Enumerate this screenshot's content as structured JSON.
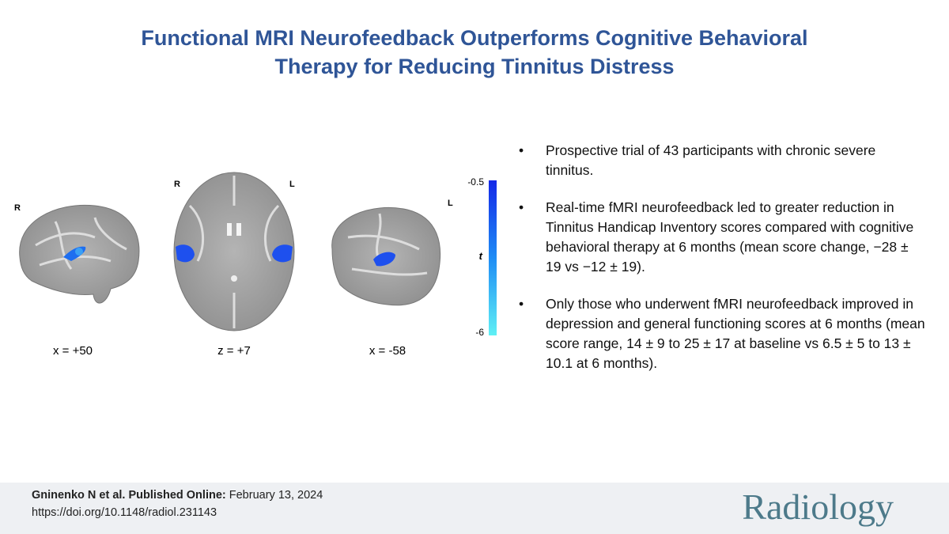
{
  "header": {
    "title_lines": [
      "Functional MRI Neurofeedback Outperforms Cognitive Behavioral",
      "Therapy for Reducing Tinnitus Distress"
    ]
  },
  "figure": {
    "panels": [
      {
        "side_labels": [
          "R"
        ],
        "caption": "x = +50"
      },
      {
        "side_labels": [
          "R",
          "L"
        ],
        "caption": "z = +7"
      },
      {
        "side_labels": [
          "L"
        ],
        "caption": "x = -58"
      }
    ],
    "colorbar": {
      "top_label": "-0.5",
      "axis_label": "t",
      "bottom_label": "-6"
    }
  },
  "bullets": [
    "Prospective trial of 43 participants with chronic severe tinnitus.",
    "Real-time fMRI neurofeedback led to greater reduction in Tinnitus Handicap Inventory scores compared with cognitive behavioral therapy at  6 months (mean score change, −28 ± 19 vs −12 ± 19).",
    "Only those who underwent fMRI neurofeedback improved in depression and general functioning scores at 6 months (mean score range, 14 ± 9 to 25 ± 17 at baseline vs 6.5 ± 5 to 13 ± 10.1 at 6 months)."
  ],
  "footer": {
    "citation_bold": "Gninenko N et al. Published Online:",
    "date": "February 13, 2024",
    "doi": "https://doi.org/10.1148/radiol.231143",
    "journal": "Radiology"
  }
}
